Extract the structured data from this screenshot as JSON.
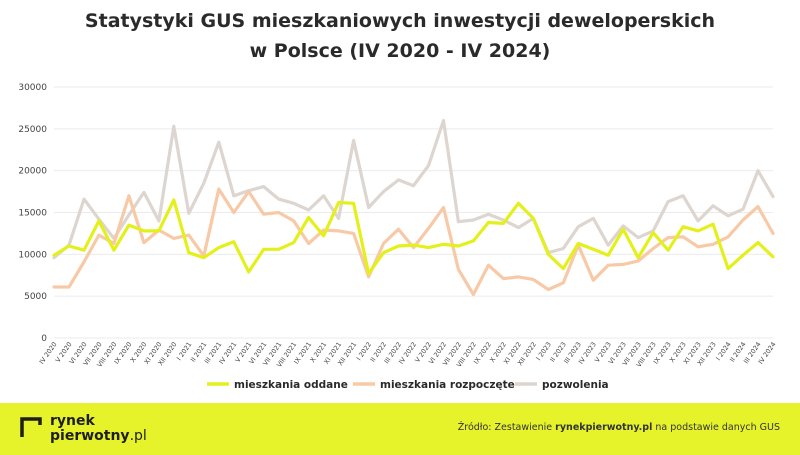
{
  "title_line1": "Statystyki GUS mieszkaniowych inwestycji deweloperskich",
  "title_line2": "w Polsce (IV 2020 - IV 2024)",
  "footer": {
    "brand_line1": "rynek",
    "brand_line2_bold": "pierwotny",
    "brand_line2_suffix": ".pl",
    "source_prefix": "Źródło: Zestawienie ",
    "source_bold": "rynekpierwotny.pl",
    "source_suffix": " na podstawie danych GUS"
  },
  "colors": {
    "mieszkania_oddane": "#e4f01b",
    "mieszkania_rozpoczete": "#f8c9a6",
    "pozwolenia": "#ddd5cf",
    "grid": "#ebebeb",
    "footer_bg": "#e6f22a"
  },
  "chart_data": {
    "type": "line",
    "title": "Statystyki GUS mieszkaniowych inwestycji deweloperskich w Polsce (IV 2020 - IV 2024)",
    "ylim": [
      0,
      30000
    ],
    "yticks": [
      0,
      5000,
      10000,
      15000,
      20000,
      25000,
      30000
    ],
    "grid": true,
    "legend_position": "bottom",
    "x": [
      "IV 2020",
      "V 2020",
      "VI 2020",
      "VII 2020",
      "VIII 2020",
      "IX 2020",
      "X 2020",
      "XI 2020",
      "XII 2020",
      "I 2021",
      "II 2021",
      "III 2021",
      "IV 2021",
      "V 2021",
      "VI 2021",
      "VII 2021",
      "VIII 2021",
      "IX 2021",
      "X 2021",
      "XI 2021",
      "XII 2021",
      "I 2022",
      "II 2022",
      "III 2022",
      "IV 2022",
      "V 2022",
      "VI 2022",
      "VII 2022",
      "VIII 2022",
      "IX 2022",
      "X 2022",
      "XI 2022",
      "XII 2022",
      "I 2023",
      "II 2023",
      "III 2023",
      "IV 2023",
      "V 2023",
      "VI 2023",
      "VII 2023",
      "VIII 2023",
      "IX 2023",
      "X 2023",
      "XI 2023",
      "XII 2023",
      "I 2024",
      "II 2024",
      "III 2024",
      "IV 2024"
    ],
    "x_tick_labels": [
      "IV 2020",
      "V 2020",
      "VI 2020",
      "VII 2020",
      "VIII 2020",
      "IX 2020",
      "X 2020",
      "XI 2020",
      "XII 2020",
      "I 2021",
      "II 2021",
      "III 2021",
      "IV 2021",
      "V 2021",
      "VI 2021",
      "VII 2021",
      "VIII 2021",
      "IX 2021",
      "X 2021",
      "XI 2021",
      "XII 2021",
      "I 2022",
      "II 2022",
      "III 2022",
      "IV 2022",
      "V 2022",
      "VI 2022",
      "VII 2022",
      "VIII 2022",
      "IX 2022",
      "X 2022",
      "XI 2022",
      "XII 2022",
      "I 2023",
      "II 2023",
      "III 2023",
      "IV 2023",
      "V 2023",
      "VI 2023",
      "VII 2023",
      "VIII 2023",
      "IX 2023",
      "X 2023",
      "XI 2023",
      "XII 2023",
      "I 2024",
      "II 2024",
      "III 2024",
      "IV 2024"
    ],
    "series": [
      {
        "name": "mieszkania oddane",
        "key": "mieszkania_oddane",
        "values": [
          9900,
          11000,
          10500,
          14000,
          10500,
          13500,
          12800,
          12800,
          16500,
          10200,
          9600,
          10800,
          11500,
          7900,
          10600,
          10600,
          11400,
          14400,
          12200,
          16200,
          16100,
          7700,
          10200,
          11000,
          11100,
          10800,
          11200,
          11000,
          11600,
          13800,
          13700,
          16100,
          14300,
          10000,
          8300,
          11300,
          10600,
          9900,
          13000,
          9600,
          12600,
          10500,
          13300,
          12800,
          13600,
          8300,
          9900,
          11400,
          9700
        ]
      },
      {
        "name": "mieszkania rozpoczęte",
        "key": "mieszkania_rozpoczete",
        "values": [
          6100,
          6100,
          9100,
          12300,
          11300,
          17000,
          11400,
          12900,
          11900,
          12300,
          9800,
          17800,
          15000,
          17500,
          14800,
          15000,
          14000,
          11300,
          12900,
          12800,
          12500,
          7300,
          11300,
          13000,
          10800,
          13100,
          15600,
          8200,
          5200,
          8700,
          7100,
          7300,
          7000,
          5800,
          6600,
          11100,
          6900,
          8700,
          8800,
          9200,
          10700,
          12000,
          12100,
          10900,
          11200,
          12100,
          14100,
          15700,
          12500
        ]
      },
      {
        "name": "pozwolenia",
        "key": "pozwolenia",
        "values": [
          9600,
          11100,
          16600,
          14200,
          11900,
          14700,
          17400,
          14000,
          25300,
          14900,
          18500,
          23400,
          17000,
          17600,
          18100,
          16600,
          16100,
          15300,
          17000,
          14300,
          23600,
          15600,
          17500,
          18900,
          18200,
          20600,
          26000,
          13900,
          14100,
          14800,
          14100,
          13200,
          14300,
          10200,
          10700,
          13300,
          14300,
          11100,
          13400,
          12000,
          12800,
          16300,
          17000,
          14000,
          15800,
          14600,
          15400,
          20000,
          16900
        ]
      }
    ]
  }
}
